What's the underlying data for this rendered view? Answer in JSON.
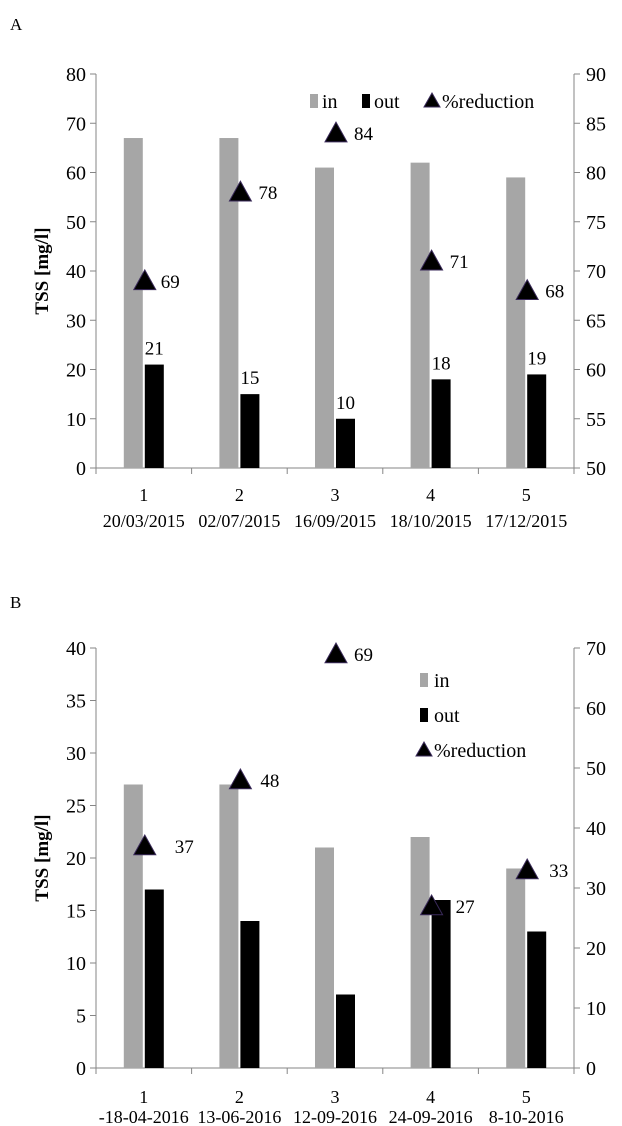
{
  "chart_data": [
    {
      "panel_label": "A",
      "type": "bar",
      "ylabel": "TSS [mg/l]",
      "ylim": [
        0,
        80
      ],
      "y_ticks": [
        0,
        10,
        20,
        30,
        40,
        50,
        60,
        70,
        80
      ],
      "y2lim": [
        50,
        90
      ],
      "y2_ticks": [
        50,
        55,
        60,
        65,
        70,
        75,
        80,
        85,
        90
      ],
      "categories": [
        "1",
        "2",
        "3",
        "4",
        "5"
      ],
      "sublabels": [
        "20/03/2015",
        "02/07/2015",
        "16/09/2015",
        "18/10/2015",
        "17/12/2015"
      ],
      "series": [
        {
          "name": "in",
          "type": "bar",
          "axis": "left",
          "color": "#a6a6a6",
          "values": [
            67,
            67,
            61,
            62,
            59
          ]
        },
        {
          "name": "out",
          "type": "bar",
          "axis": "left",
          "color": "#000000",
          "values": [
            21,
            15,
            10,
            18,
            19
          ],
          "data_labels": [
            "21",
            "15",
            "10",
            "18",
            "19"
          ]
        },
        {
          "name": "%reduction",
          "type": "scatter",
          "marker": "triangle",
          "axis": "right",
          "color": "#000000",
          "values": [
            69,
            78,
            84,
            71,
            68
          ],
          "data_labels": [
            "69",
            "78",
            "84",
            "71",
            "68"
          ]
        }
      ],
      "legend": {
        "placement": "top-right",
        "layout": "horizontal"
      },
      "grid": false
    },
    {
      "panel_label": "B",
      "type": "bar",
      "ylabel": "TSS [mg/l]",
      "ylim": [
        0,
        40
      ],
      "y_ticks": [
        0,
        5,
        10,
        15,
        20,
        25,
        30,
        35,
        40
      ],
      "y2lim": [
        0,
        70
      ],
      "y2_ticks": [
        0,
        10,
        20,
        30,
        40,
        50,
        60,
        70
      ],
      "categories": [
        "1",
        "2",
        "3",
        "4",
        "5"
      ],
      "sublabels": [
        "-18-04-2016",
        "13-06-2016",
        "12-09-2016",
        "24-09-2016",
        "8-10-2016"
      ],
      "series": [
        {
          "name": "in",
          "type": "bar",
          "axis": "left",
          "color": "#a6a6a6",
          "values": [
            27,
            27,
            21,
            22,
            19
          ]
        },
        {
          "name": "out",
          "type": "bar",
          "axis": "left",
          "color": "#000000",
          "values": [
            17,
            14,
            7,
            16,
            13
          ]
        },
        {
          "name": "%reduction",
          "type": "scatter",
          "marker": "triangle",
          "axis": "right",
          "color": "#000000",
          "values": [
            37,
            48,
            69,
            27,
            33
          ],
          "data_labels": [
            "37",
            "48",
            "69",
            "27",
            "33"
          ]
        }
      ],
      "legend": {
        "placement": "top-right",
        "layout": "vertical"
      },
      "grid": false
    }
  ]
}
